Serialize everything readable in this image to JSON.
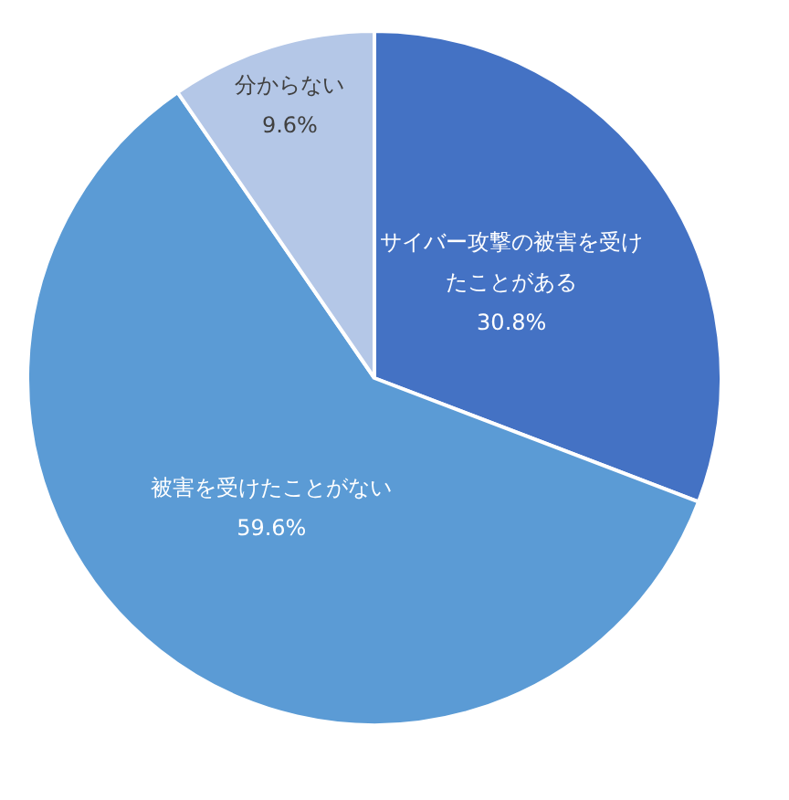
{
  "chart_data": {
    "type": "pie",
    "categories": [
      "サイバー攻撃の被害を受けたことがある",
      "被害を受けたことがない",
      "分からない"
    ],
    "values": [
      30.8,
      59.6,
      9.6
    ],
    "colors": [
      "#4472c4",
      "#5b9bd5",
      "#b4c7e7"
    ],
    "value_labels": [
      "30.8%",
      "59.6%",
      "9.6%"
    ],
    "legend": false
  }
}
